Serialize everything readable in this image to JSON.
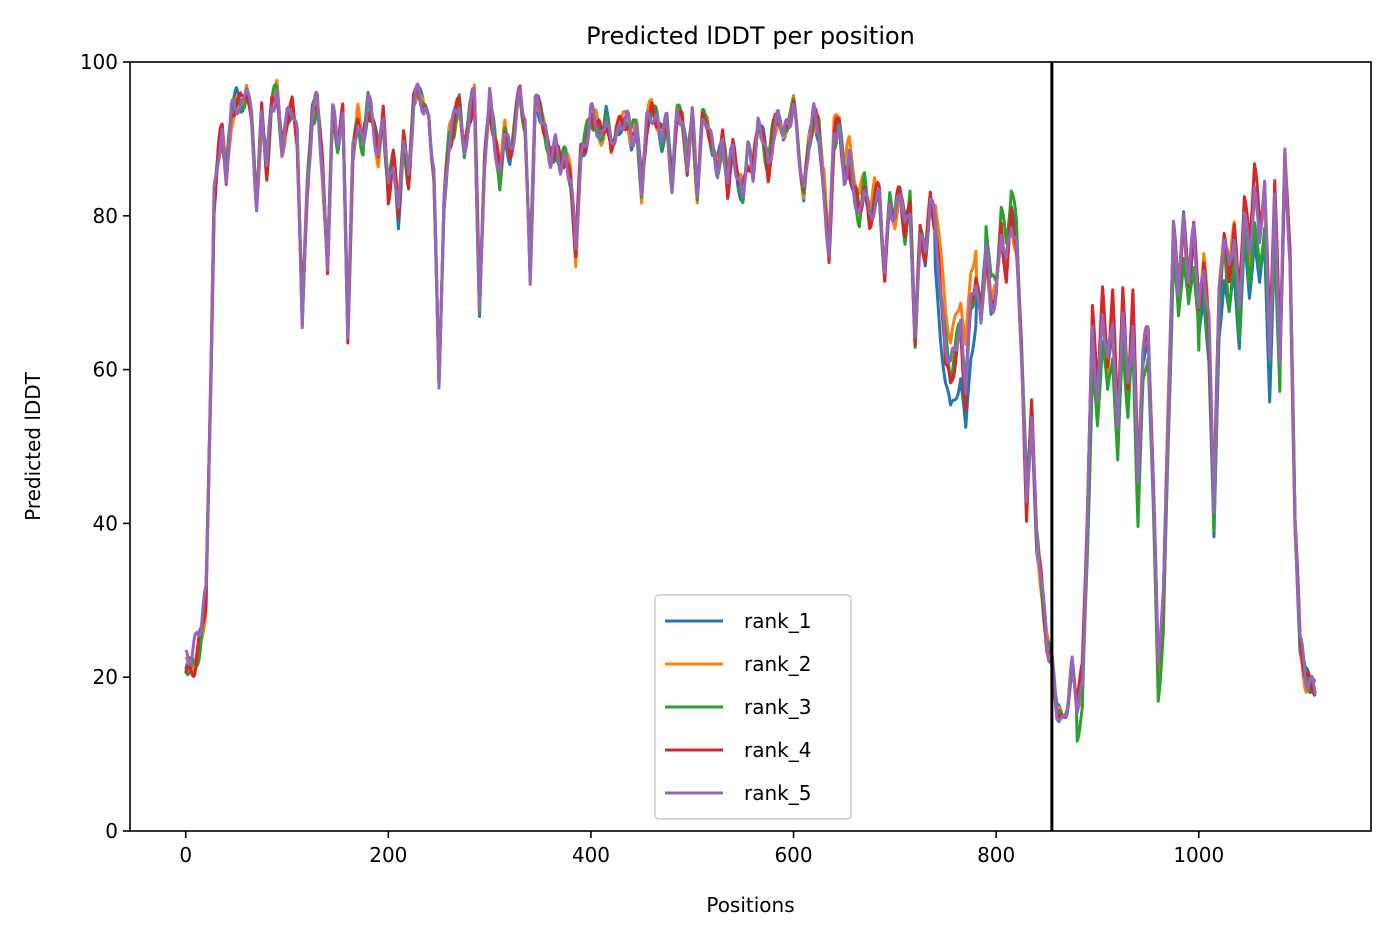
{
  "chart_data": {
    "type": "line",
    "title": "Predicted lDDT per position",
    "xlabel": "Positions",
    "ylabel": "Predicted lDDT",
    "xlim": [
      -55,
      1170
    ],
    "ylim": [
      0,
      100
    ],
    "xticks": [
      0,
      200,
      400,
      600,
      800,
      1000
    ],
    "yticks": [
      0,
      20,
      40,
      60,
      80,
      100
    ],
    "vline_x": 855,
    "grid": false,
    "legend_position": "lower center",
    "series_colors": [
      "#1f77b4",
      "#ff7f0e",
      "#2ca02c",
      "#d62728",
      "#9467bd"
    ],
    "series": [
      {
        "name": "rank_1",
        "color": "#1f77b4",
        "offsets": [
          [
            740,
            780,
            -6
          ],
          [
            1000,
            1075,
            -5
          ],
          [
            25,
            30,
            0
          ]
        ]
      },
      {
        "name": "rank_2",
        "color": "#ff7f0e",
        "offsets": [
          [
            740,
            780,
            4
          ],
          [
            630,
            680,
            2
          ],
          [
            1085,
            1115,
            -1
          ]
        ]
      },
      {
        "name": "rank_3",
        "color": "#2ca02c",
        "offsets": [
          [
            790,
            830,
            3
          ],
          [
            880,
            1000,
            -4
          ],
          [
            1000,
            1080,
            -3
          ]
        ]
      },
      {
        "name": "rank_4",
        "color": "#d62728",
        "offsets": [
          [
            750,
            770,
            -2
          ],
          [
            880,
            940,
            2
          ],
          [
            1040,
            1080,
            3
          ]
        ]
      },
      {
        "name": "rank_5",
        "color": "#9467bd",
        "offsets": [
          [
            0,
            20,
            2
          ],
          [
            780,
            830,
            0
          ],
          [
            1050,
            1080,
            1
          ]
        ]
      }
    ],
    "base_profile": [
      [
        0,
        21
      ],
      [
        5,
        21
      ],
      [
        10,
        22
      ],
      [
        15,
        25
      ],
      [
        20,
        30
      ],
      [
        25,
        60
      ],
      [
        28,
        82
      ],
      [
        32,
        88
      ],
      [
        36,
        91
      ],
      [
        40,
        85
      ],
      [
        45,
        93
      ],
      [
        50,
        95
      ],
      [
        55,
        94
      ],
      [
        60,
        97
      ],
      [
        65,
        92
      ],
      [
        70,
        82
      ],
      [
        75,
        93
      ],
      [
        80,
        86
      ],
      [
        85,
        95
      ],
      [
        90,
        96
      ],
      [
        95,
        88
      ],
      [
        100,
        93
      ],
      [
        105,
        95
      ],
      [
        110,
        90
      ],
      [
        115,
        66
      ],
      [
        120,
        84
      ],
      [
        125,
        93
      ],
      [
        130,
        95
      ],
      [
        135,
        86
      ],
      [
        140,
        74
      ],
      [
        145,
        93
      ],
      [
        150,
        90
      ],
      [
        155,
        93
      ],
      [
        160,
        65
      ],
      [
        165,
        88
      ],
      [
        170,
        93
      ],
      [
        175,
        89
      ],
      [
        180,
        95
      ],
      [
        185,
        92
      ],
      [
        190,
        88
      ],
      [
        195,
        93
      ],
      [
        200,
        83
      ],
      [
        205,
        88
      ],
      [
        210,
        80
      ],
      [
        215,
        90
      ],
      [
        220,
        85
      ],
      [
        225,
        95
      ],
      [
        230,
        96
      ],
      [
        235,
        93
      ],
      [
        240,
        94
      ],
      [
        245,
        85
      ],
      [
        250,
        58
      ],
      [
        255,
        82
      ],
      [
        260,
        90
      ],
      [
        265,
        92
      ],
      [
        270,
        95
      ],
      [
        275,
        88
      ],
      [
        280,
        93
      ],
      [
        285,
        96
      ],
      [
        290,
        68
      ],
      [
        295,
        87
      ],
      [
        300,
        95
      ],
      [
        305,
        90
      ],
      [
        310,
        85
      ],
      [
        315,
        91
      ],
      [
        320,
        88
      ],
      [
        325,
        92
      ],
      [
        330,
        96
      ],
      [
        335,
        92
      ],
      [
        340,
        72
      ],
      [
        345,
        95
      ],
      [
        350,
        93
      ],
      [
        355,
        91
      ],
      [
        360,
        88
      ],
      [
        365,
        89
      ],
      [
        370,
        86
      ],
      [
        375,
        88
      ],
      [
        380,
        85
      ],
      [
        385,
        75
      ],
      [
        390,
        88
      ],
      [
        395,
        90
      ],
      [
        400,
        93
      ],
      [
        405,
        92
      ],
      [
        410,
        90
      ],
      [
        415,
        93
      ],
      [
        420,
        88
      ],
      [
        425,
        92
      ],
      [
        430,
        91
      ],
      [
        435,
        93
      ],
      [
        440,
        90
      ],
      [
        445,
        92
      ],
      [
        450,
        83
      ],
      [
        455,
        92
      ],
      [
        460,
        94
      ],
      [
        465,
        92
      ],
      [
        470,
        90
      ],
      [
        475,
        93
      ],
      [
        480,
        84
      ],
      [
        485,
        93
      ],
      [
        490,
        92
      ],
      [
        495,
        87
      ],
      [
        500,
        93
      ],
      [
        505,
        83
      ],
      [
        510,
        92
      ],
      [
        515,
        93
      ],
      [
        520,
        88
      ],
      [
        525,
        86
      ],
      [
        530,
        90
      ],
      [
        535,
        84
      ],
      [
        540,
        89
      ],
      [
        545,
        85
      ],
      [
        550,
        83
      ],
      [
        555,
        88
      ],
      [
        560,
        86
      ],
      [
        565,
        92
      ],
      [
        570,
        90
      ],
      [
        575,
        86
      ],
      [
        580,
        91
      ],
      [
        585,
        93
      ],
      [
        590,
        90
      ],
      [
        595,
        93
      ],
      [
        600,
        94
      ],
      [
        605,
        88
      ],
      [
        610,
        83
      ],
      [
        615,
        90
      ],
      [
        620,
        93
      ],
      [
        625,
        91
      ],
      [
        630,
        83
      ],
      [
        635,
        75
      ],
      [
        640,
        90
      ],
      [
        645,
        92
      ],
      [
        650,
        85
      ],
      [
        655,
        87
      ],
      [
        660,
        83
      ],
      [
        665,
        80
      ],
      [
        670,
        84
      ],
      [
        675,
        79
      ],
      [
        680,
        82
      ],
      [
        685,
        83
      ],
      [
        690,
        72
      ],
      [
        695,
        82
      ],
      [
        700,
        80
      ],
      [
        705,
        83
      ],
      [
        710,
        78
      ],
      [
        715,
        82
      ],
      [
        720,
        63
      ],
      [
        725,
        78
      ],
      [
        730,
        75
      ],
      [
        735,
        83
      ],
      [
        740,
        78
      ],
      [
        745,
        70
      ],
      [
        750,
        64
      ],
      [
        755,
        60
      ],
      [
        760,
        63
      ],
      [
        765,
        66
      ],
      [
        770,
        58
      ],
      [
        775,
        68
      ],
      [
        780,
        72
      ],
      [
        785,
        66
      ],
      [
        790,
        76
      ],
      [
        795,
        68
      ],
      [
        800,
        70
      ],
      [
        805,
        78
      ],
      [
        810,
        73
      ],
      [
        815,
        80
      ],
      [
        820,
        76
      ],
      [
        825,
        62
      ],
      [
        830,
        42
      ],
      [
        835,
        55
      ],
      [
        840,
        38
      ],
      [
        845,
        32
      ],
      [
        850,
        25
      ],
      [
        855,
        22
      ],
      [
        860,
        15
      ],
      [
        865,
        14
      ],
      [
        870,
        17
      ],
      [
        875,
        21
      ],
      [
        880,
        16
      ],
      [
        885,
        19
      ],
      [
        890,
        40
      ],
      [
        895,
        65
      ],
      [
        900,
        56
      ],
      [
        905,
        68
      ],
      [
        910,
        60
      ],
      [
        915,
        67
      ],
      [
        920,
        52
      ],
      [
        925,
        68
      ],
      [
        930,
        57
      ],
      [
        935,
        67
      ],
      [
        940,
        45
      ],
      [
        945,
        62
      ],
      [
        950,
        66
      ],
      [
        955,
        45
      ],
      [
        960,
        22
      ],
      [
        965,
        30
      ],
      [
        970,
        55
      ],
      [
        975,
        78
      ],
      [
        980,
        70
      ],
      [
        985,
        80
      ],
      [
        990,
        72
      ],
      [
        995,
        78
      ],
      [
        1000,
        68
      ],
      [
        1005,
        74
      ],
      [
        1010,
        66
      ],
      [
        1015,
        42
      ],
      [
        1020,
        70
      ],
      [
        1025,
        78
      ],
      [
        1030,
        72
      ],
      [
        1035,
        78
      ],
      [
        1040,
        68
      ],
      [
        1045,
        80
      ],
      [
        1050,
        74
      ],
      [
        1055,
        83
      ],
      [
        1060,
        76
      ],
      [
        1065,
        82
      ],
      [
        1070,
        62
      ],
      [
        1075,
        81
      ],
      [
        1080,
        60
      ],
      [
        1085,
        88
      ],
      [
        1090,
        75
      ],
      [
        1095,
        40
      ],
      [
        1100,
        25
      ],
      [
        1105,
        21
      ],
      [
        1110,
        19
      ],
      [
        1115,
        18
      ]
    ]
  }
}
